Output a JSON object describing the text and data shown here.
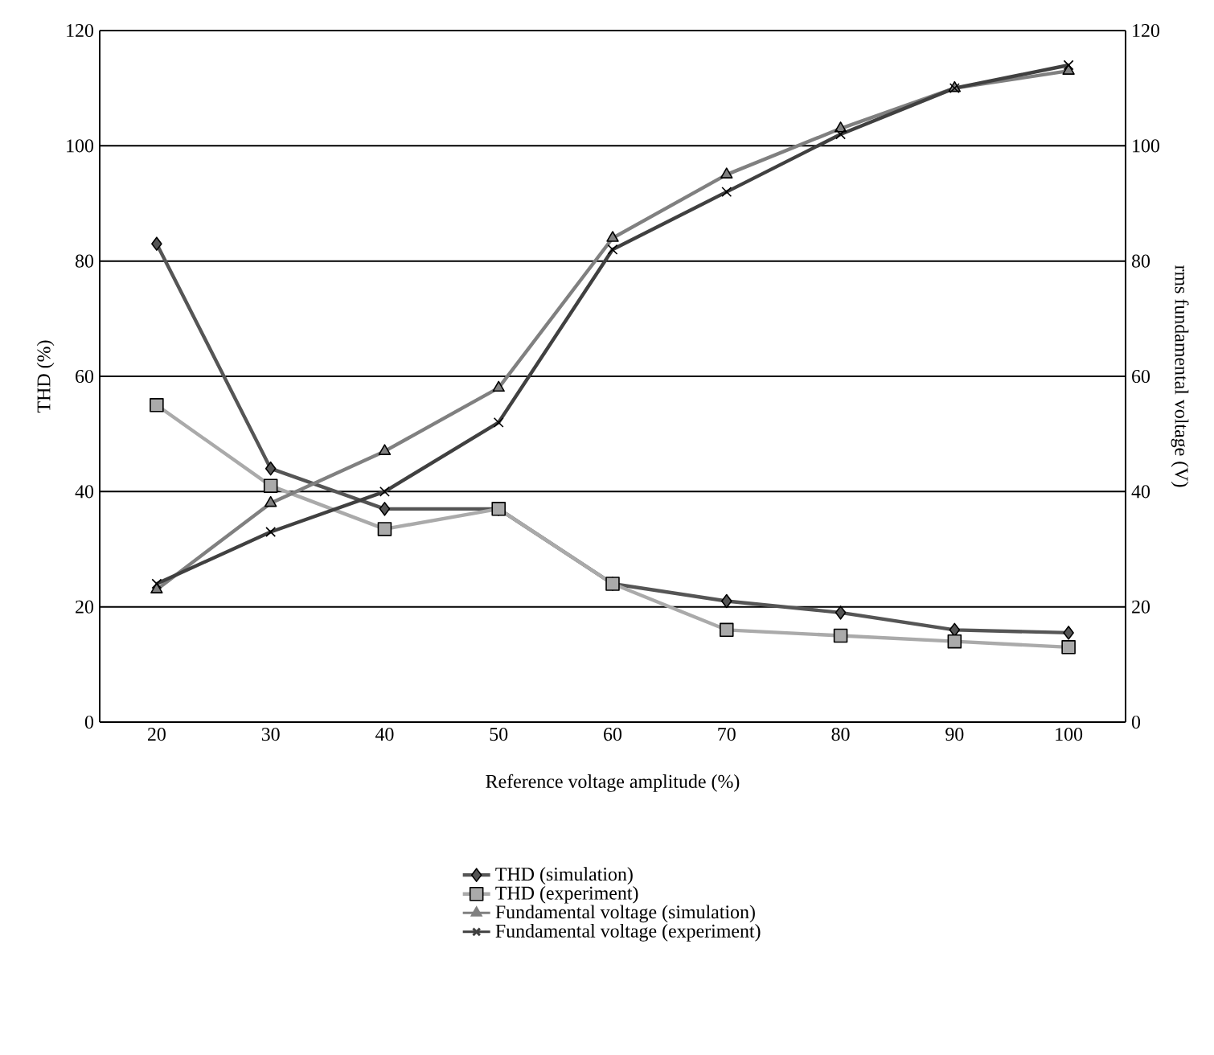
{
  "chart_data": {
    "type": "line",
    "xlabel": "Reference voltage amplitude (%)",
    "ylabel": "THD (%)",
    "y2label": "rms fundamental voltage (V)",
    "categories": [
      "20",
      "30",
      "40",
      "50",
      "60",
      "70",
      "80",
      "90",
      "100"
    ],
    "series": [
      {
        "name": "THD (simulation)",
        "color": "#555555",
        "marker": "diamond",
        "values": [
          83,
          44,
          37,
          37,
          24,
          21,
          19,
          16,
          15.5
        ]
      },
      {
        "name": "THD (experiment)",
        "color": "#aaaaaa",
        "marker": "square",
        "values": [
          55,
          41,
          33.5,
          37,
          24,
          16,
          15,
          14,
          13
        ]
      },
      {
        "name": "Fundamental voltage (simulation)",
        "color": "#808080",
        "marker": "triangle",
        "axis": "y2",
        "values": [
          23,
          38,
          47,
          58,
          84,
          95,
          103,
          110,
          113
        ]
      },
      {
        "name": "Fundamental voltage (experiment)",
        "color": "#404040",
        "marker": "cross",
        "axis": "y2",
        "values": [
          24,
          33,
          40,
          52,
          82,
          92,
          102,
          110,
          114
        ]
      }
    ],
    "ylim": [
      0,
      120
    ],
    "yticks": [
      0,
      20,
      40,
      60,
      80,
      100,
      120
    ],
    "y2lim": [
      0,
      120
    ],
    "y2ticks": [
      0,
      20,
      40,
      60,
      80,
      100,
      120
    ],
    "grid": "y",
    "legend": "bottom"
  }
}
